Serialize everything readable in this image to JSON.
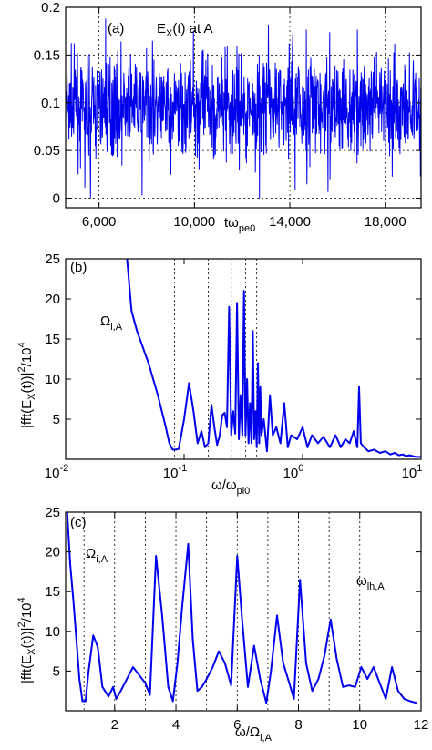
{
  "chart_data": [
    {
      "id": "a",
      "type": "line",
      "panel_label": "(a)",
      "title_main": "E",
      "title_sub": "X",
      "title_rest": "(t) at A",
      "xlabel_main": "tω",
      "xlabel_sub": "pe0",
      "xlim": [
        4600,
        19500
      ],
      "ylim": [
        -0.01,
        0.2
      ],
      "x_ticks": [
        6000,
        10000,
        14000,
        18000
      ],
      "x_tick_labels": [
        "6,000",
        "10,000",
        "14,000",
        "18,000"
      ],
      "y_ticks": [
        0,
        0.05,
        0.1,
        0.15,
        0.2
      ],
      "y_tick_labels": [
        "0",
        "0.05",
        "0.1",
        "0.15",
        "0.2"
      ],
      "grid": true,
      "color": "#0000ee",
      "signal": {
        "mean": 0.095,
        "spread": 0.025,
        "min": 0.0,
        "max": 0.195,
        "samples": 1200
      }
    },
    {
      "id": "b",
      "type": "line",
      "panel_label": "(b)",
      "xscale": "log",
      "xlim": [
        0.01,
        10
      ],
      "ylim": [
        0,
        25
      ],
      "x_ticks": [
        0.01,
        0.1,
        1,
        10
      ],
      "x_tick_labels": [
        {
          "base": "10",
          "exp": "-2"
        },
        {
          "base": "10",
          "exp": "-1"
        },
        {
          "base": "10",
          "exp": "0"
        },
        {
          "base": "10",
          "exp": "1"
        }
      ],
      "y_ticks": [
        5,
        10,
        15,
        20,
        25
      ],
      "y_tick_labels": [
        "5",
        "10",
        "15",
        "20",
        "25"
      ],
      "xlabel_main": "ω/ω",
      "xlabel_sub": "pi0",
      "ylabel_main": "|fft(E",
      "ylabel_sub": "X",
      "ylabel_mid": "(t))|",
      "ylabel_sup": "2",
      "ylabel_end": "/10",
      "ylabel_sup2": "4",
      "annotation_main": "Ω",
      "annotation_sub": "i,A",
      "vlines": [
        0.083,
        0.16,
        0.25,
        0.33,
        0.41
      ],
      "color": "#0000ee",
      "x": [
        0.033,
        0.036,
        0.04,
        0.05,
        0.06,
        0.07,
        0.075,
        0.08,
        0.085,
        0.09,
        0.1,
        0.11,
        0.12,
        0.13,
        0.14,
        0.15,
        0.16,
        0.17,
        0.18,
        0.19,
        0.2,
        0.21,
        0.22,
        0.23,
        0.24,
        0.25,
        0.26,
        0.27,
        0.28,
        0.29,
        0.3,
        0.31,
        0.32,
        0.33,
        0.34,
        0.35,
        0.36,
        0.37,
        0.38,
        0.39,
        0.4,
        0.41,
        0.42,
        0.43,
        0.44,
        0.45,
        0.47,
        0.5,
        0.53,
        0.56,
        0.6,
        0.65,
        0.7,
        0.75,
        0.8,
        0.9,
        1.0,
        1.1,
        1.2,
        1.35,
        1.5,
        1.7,
        1.9,
        2.1,
        2.3,
        2.5,
        2.7,
        2.9,
        3.0,
        3.1,
        3.3,
        3.6,
        4.0,
        4.5,
        5.0,
        5.5,
        6.0,
        6.5,
        7.0,
        7.5,
        8.0,
        9.0,
        10.0
      ],
      "y": [
        25,
        18.5,
        16,
        12,
        8,
        4,
        2,
        1.2,
        1.2,
        1.3,
        5,
        9.5,
        6,
        2,
        3.5,
        1.5,
        2,
        6.8,
        4,
        1.8,
        3,
        5.5,
        5.8,
        4,
        19,
        3,
        6,
        3.2,
        19.5,
        2.5,
        8,
        3,
        21,
        3,
        10,
        2,
        7,
        2,
        16,
        2.5,
        6,
        1.5,
        12,
        2,
        9,
        3,
        5,
        1,
        8,
        3,
        4,
        2,
        7,
        1.5,
        3,
        2.5,
        4,
        1.5,
        3,
        2,
        2.8,
        1.5,
        3,
        1.5,
        2.5,
        2,
        3.5,
        1.5,
        9,
        2,
        1.5,
        1,
        1.2,
        0.8,
        1,
        0.6,
        0.8,
        0.5,
        0.6,
        0.4,
        0.5,
        0.3,
        0.3
      ]
    },
    {
      "id": "c",
      "type": "line",
      "panel_label": "(c)",
      "xlim": [
        0.4,
        12
      ],
      "ylim": [
        0,
        25
      ],
      "x_ticks": [
        2,
        4,
        6,
        8,
        10,
        12
      ],
      "x_tick_labels": [
        "2",
        "4",
        "6",
        "8",
        "10",
        "12"
      ],
      "y_ticks": [
        5,
        10,
        15,
        20,
        25
      ],
      "y_tick_labels": [
        "5",
        "10",
        "15",
        "20",
        "25"
      ],
      "xlabel_main": "ω/Ω",
      "xlabel_sub": "i,A",
      "ylabel_main": "|fft(E",
      "ylabel_sub": "X",
      "ylabel_mid": "(t))|",
      "ylabel_sup": "2",
      "ylabel_end": "/10",
      "ylabel_sup2": "4",
      "annotation1_main": "Ω",
      "annotation1_sub": "i,A",
      "annotation2_main": "ω",
      "annotation2_sub": "lh,A",
      "vlines": [
        1,
        2,
        3,
        4,
        5,
        6,
        7,
        8,
        9,
        10
      ],
      "color": "#0000ee",
      "x": [
        0.45,
        0.55,
        0.65,
        0.75,
        0.85,
        0.95,
        1.05,
        1.15,
        1.3,
        1.45,
        1.6,
        1.8,
        1.95,
        2.05,
        2.2,
        2.4,
        2.6,
        2.8,
        3.0,
        3.15,
        3.35,
        3.55,
        3.75,
        3.9,
        4.05,
        4.2,
        4.4,
        4.55,
        4.7,
        4.85,
        5.0,
        5.2,
        5.4,
        5.6,
        5.8,
        6.0,
        6.15,
        6.35,
        6.55,
        6.75,
        6.95,
        7.1,
        7.3,
        7.5,
        7.7,
        7.85,
        8.05,
        8.25,
        8.45,
        8.65,
        8.85,
        9.05,
        9.25,
        9.45,
        9.65,
        9.85,
        10.05,
        10.25,
        10.45,
        10.65,
        10.85,
        11.05,
        11.25,
        11.45,
        11.65,
        11.85
      ],
      "y": [
        25,
        18.5,
        14,
        9,
        4,
        1.2,
        1.2,
        5,
        9.5,
        8,
        3,
        1.8,
        3,
        1.5,
        2.5,
        4,
        5.5,
        4.5,
        3.5,
        2,
        19.5,
        12,
        3,
        1.2,
        6,
        13,
        21,
        9,
        2.5,
        3,
        4,
        5.5,
        7.5,
        6,
        3.2,
        19.5,
        12,
        3,
        8.2,
        4,
        1,
        5,
        12,
        6,
        3.5,
        1.5,
        16.5,
        6,
        2.5,
        4,
        7,
        11.5,
        6.5,
        3,
        3.2,
        3,
        5.5,
        4,
        5.5,
        3.5,
        1.5,
        5.5,
        2.5,
        1.5,
        1.2,
        1
      ]
    }
  ]
}
